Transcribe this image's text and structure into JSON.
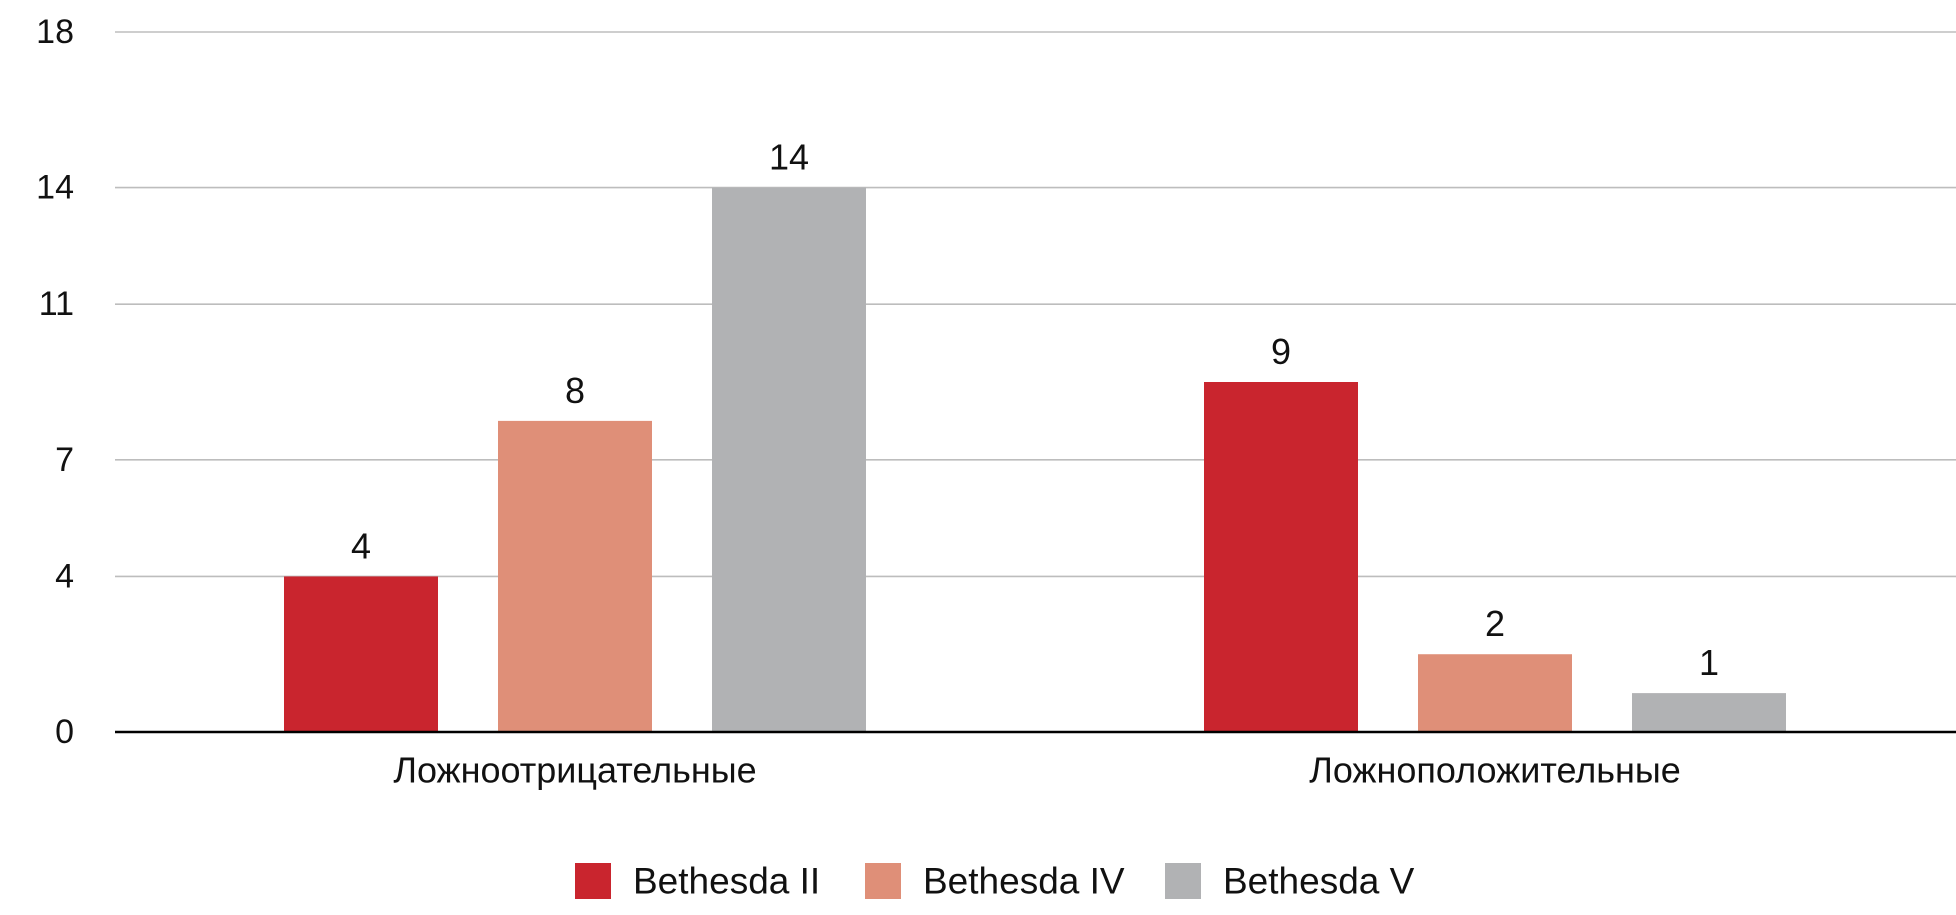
{
  "chart_data": {
    "type": "bar",
    "categories": [
      "Ложноотрицательные",
      "Ложноположительные"
    ],
    "series": [
      {
        "name": "Bethesda II",
        "values": [
          4,
          9
        ],
        "data_labels": [
          "4",
          "9"
        ],
        "color": "#c9252e"
      },
      {
        "name": "Bethesda IV",
        "values": [
          8,
          2
        ],
        "data_labels": [
          "8",
          "2"
        ],
        "color": "#df8f78"
      },
      {
        "name": "Bethesda V",
        "values": [
          14,
          1
        ],
        "data_labels": [
          "14",
          "1"
        ],
        "color": "#b1b2b4"
      }
    ],
    "yticks": [
      0,
      4,
      7,
      11,
      14,
      18
    ],
    "ytick_labels": [
      "0",
      "4",
      "7",
      "11",
      "14",
      "18"
    ],
    "ylim": [
      0,
      18
    ],
    "grid": true,
    "gridline_color": "#bdbdbd",
    "axis_color": "#000000",
    "legend_position": "bottom-center",
    "title": "",
    "xlabel": "",
    "ylabel": ""
  }
}
